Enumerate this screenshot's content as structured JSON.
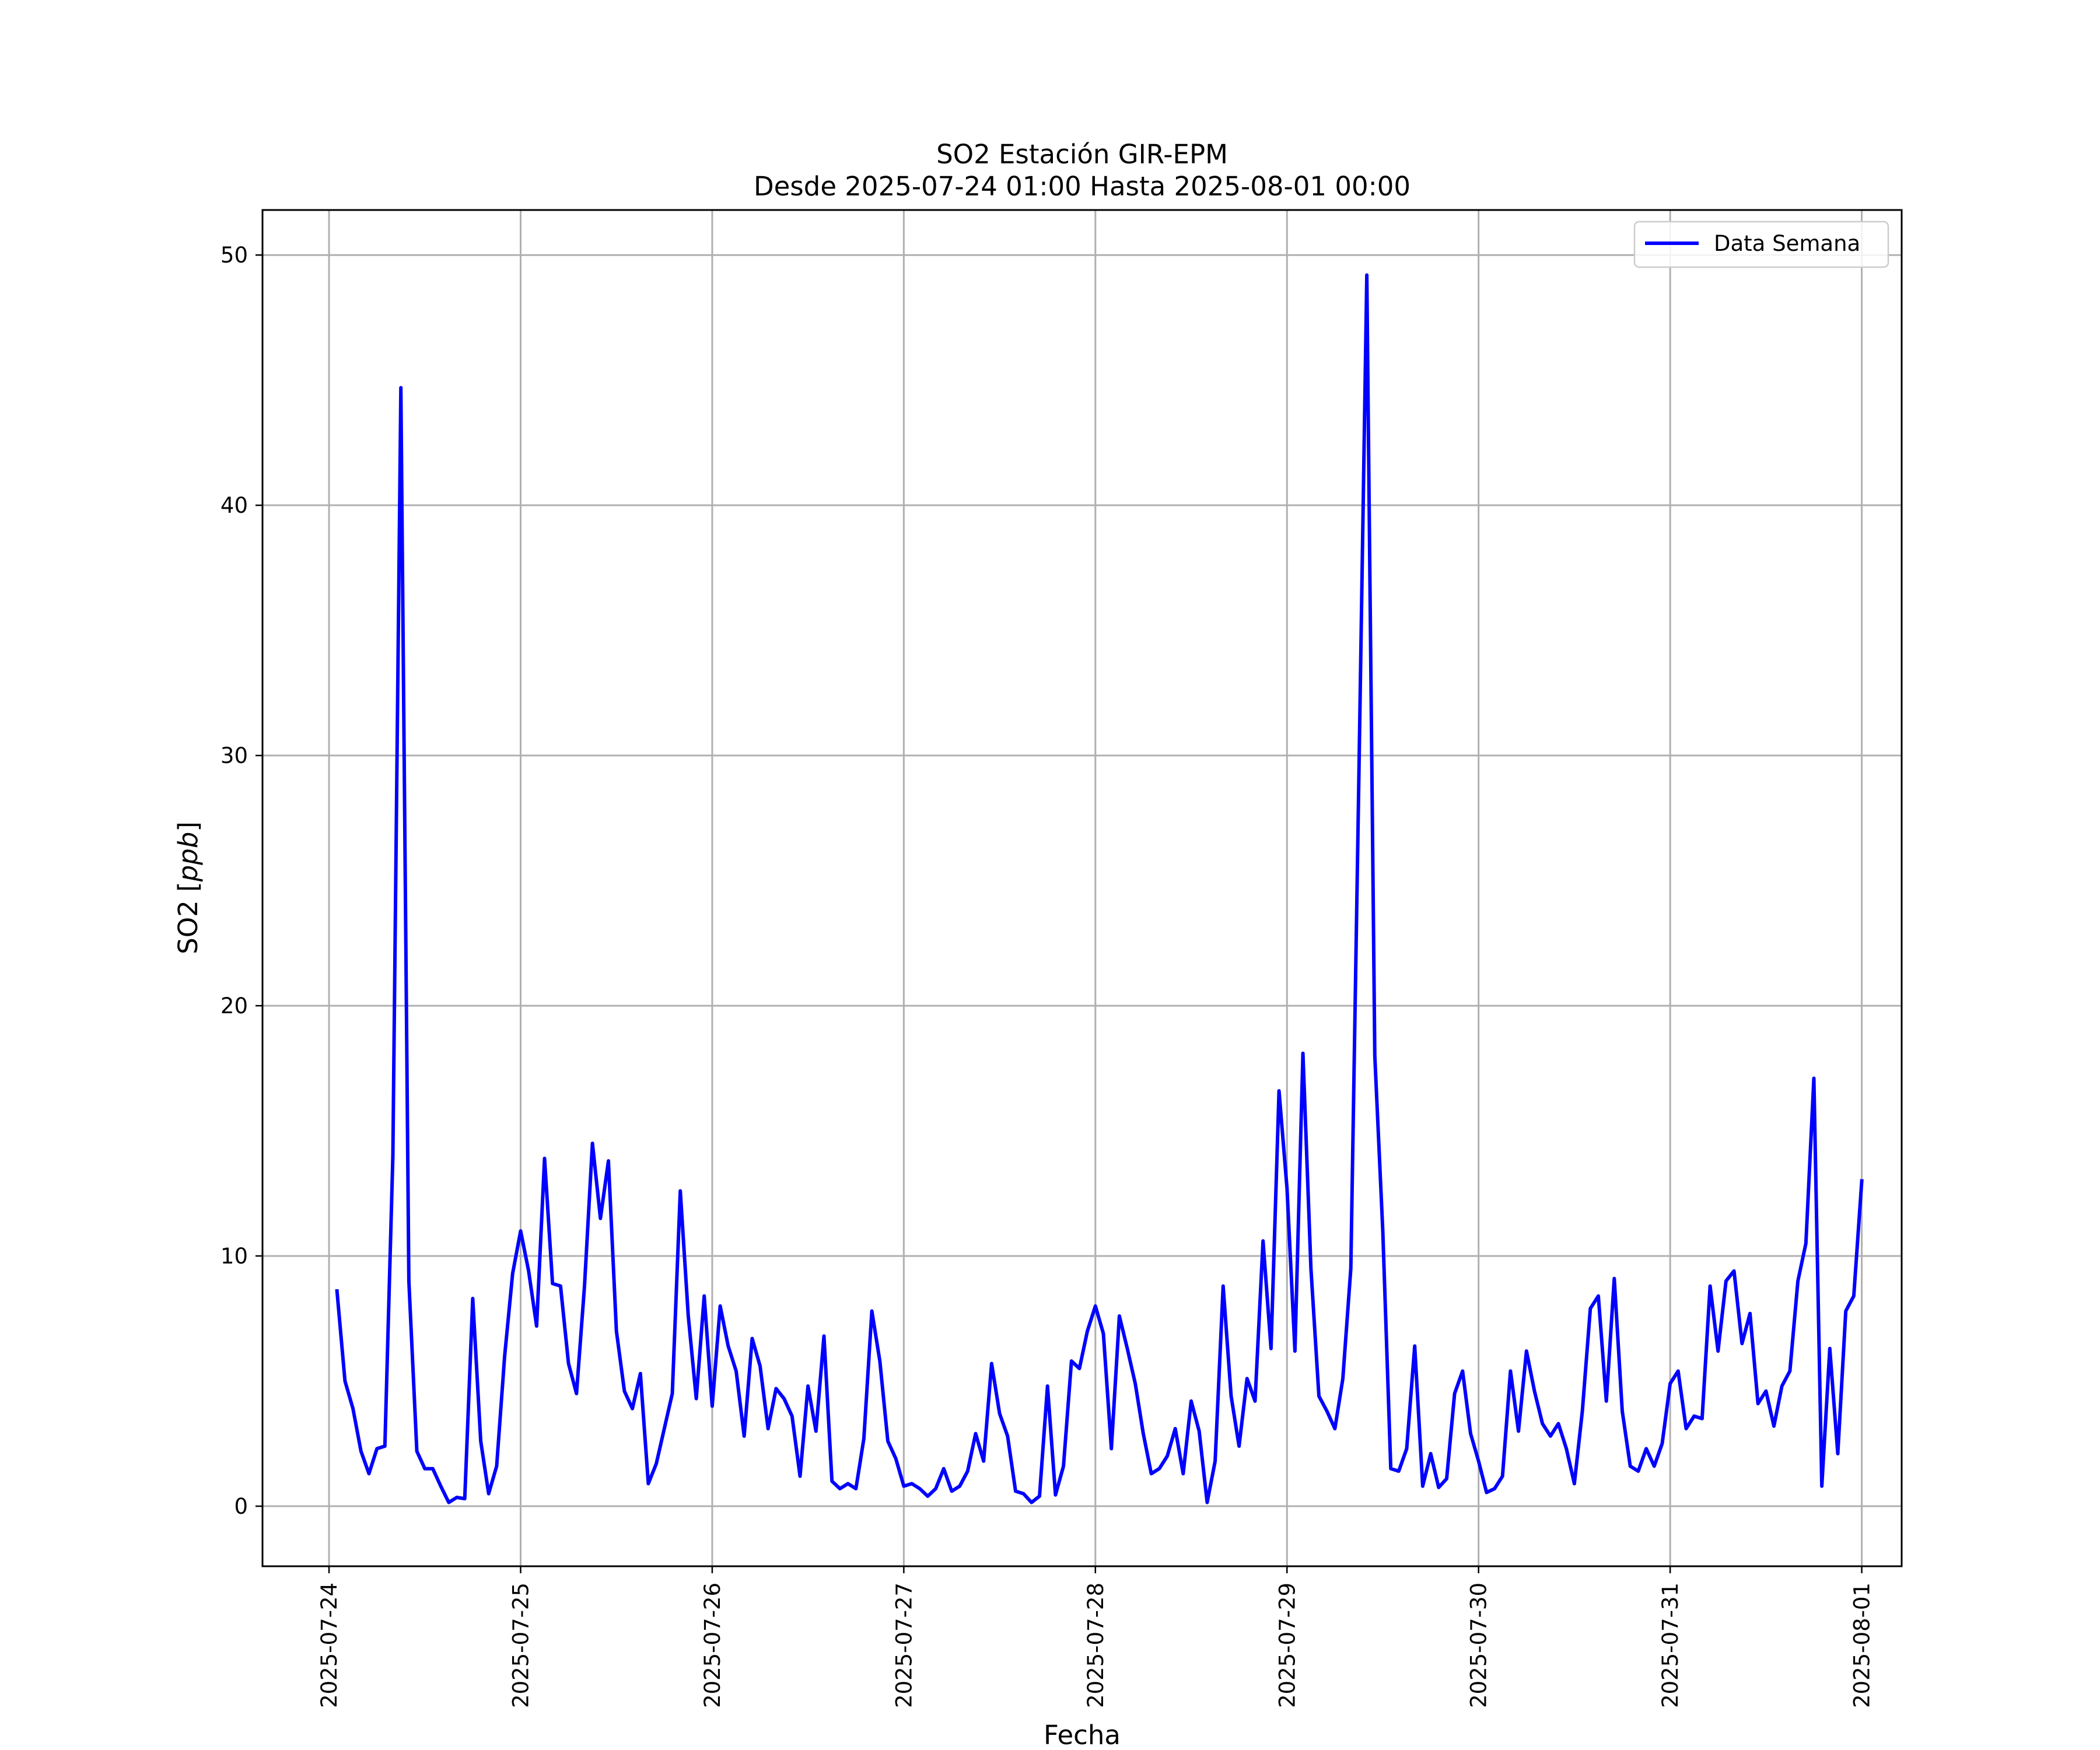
{
  "chart_data": {
    "type": "line",
    "title": "SO2 Estación GIR-EPM",
    "subtitle": "Desde 2025-07-24 01:00 Hasta 2025-08-01 00:00",
    "xlabel": "Fecha",
    "ylabel_prefix": "SO2 [",
    "ylabel_unit": "ppb",
    "ylabel_suffix": "]",
    "x_ticks": [
      "2025-07-24",
      "2025-07-25",
      "2025-07-26",
      "2025-07-27",
      "2025-07-28",
      "2025-07-29",
      "2025-07-30",
      "2025-07-31",
      "2025-08-01"
    ],
    "y_ticks": [
      "0",
      "10",
      "20",
      "30",
      "40",
      "50"
    ],
    "xlim": [
      "2025-07-23 15:40",
      "2025-08-01 05:00"
    ],
    "ylim": [
      -2.4,
      51.8
    ],
    "grid": true,
    "legend_position": "top-right",
    "color": "#0000ff",
    "series": [
      {
        "name": "Data Semana",
        "x": [
          "2025-07-24 01:00",
          "2025-07-24 02:00",
          "2025-07-24 03:00",
          "2025-07-24 04:00",
          "2025-07-24 05:00",
          "2025-07-24 06:00",
          "2025-07-24 07:00",
          "2025-07-24 08:00",
          "2025-07-24 09:00",
          "2025-07-24 10:00",
          "2025-07-24 11:00",
          "2025-07-24 12:00",
          "2025-07-24 13:00",
          "2025-07-24 14:00",
          "2025-07-24 15:00",
          "2025-07-24 16:00",
          "2025-07-24 17:00",
          "2025-07-24 18:00",
          "2025-07-24 19:00",
          "2025-07-24 20:00",
          "2025-07-24 21:00",
          "2025-07-24 22:00",
          "2025-07-24 23:00",
          "2025-07-25 00:00",
          "2025-07-25 01:00",
          "2025-07-25 02:00",
          "2025-07-25 03:00",
          "2025-07-25 04:00",
          "2025-07-25 05:00",
          "2025-07-25 06:00",
          "2025-07-25 07:00",
          "2025-07-25 08:00",
          "2025-07-25 09:00",
          "2025-07-25 10:00",
          "2025-07-25 11:00",
          "2025-07-25 12:00",
          "2025-07-25 13:00",
          "2025-07-25 14:00",
          "2025-07-25 15:00",
          "2025-07-25 16:00",
          "2025-07-25 17:00",
          "2025-07-25 18:00",
          "2025-07-25 19:00",
          "2025-07-25 20:00",
          "2025-07-25 21:00",
          "2025-07-25 22:00",
          "2025-07-25 23:00",
          "2025-07-26 00:00",
          "2025-07-26 01:00",
          "2025-07-26 02:00",
          "2025-07-26 03:00",
          "2025-07-26 04:00",
          "2025-07-26 05:00",
          "2025-07-26 06:00",
          "2025-07-26 07:00",
          "2025-07-26 08:00",
          "2025-07-26 09:00",
          "2025-07-26 10:00",
          "2025-07-26 11:00",
          "2025-07-26 12:00",
          "2025-07-26 13:00",
          "2025-07-26 14:00",
          "2025-07-26 15:00",
          "2025-07-26 16:00",
          "2025-07-26 17:00",
          "2025-07-26 18:00",
          "2025-07-26 19:00",
          "2025-07-26 20:00",
          "2025-07-26 21:00",
          "2025-07-26 22:00",
          "2025-07-26 23:00",
          "2025-07-27 00:00",
          "2025-07-27 01:00",
          "2025-07-27 02:00",
          "2025-07-27 03:00",
          "2025-07-27 04:00",
          "2025-07-27 05:00",
          "2025-07-27 06:00",
          "2025-07-27 07:00",
          "2025-07-27 08:00",
          "2025-07-27 09:00",
          "2025-07-27 10:00",
          "2025-07-27 11:00",
          "2025-07-27 12:00",
          "2025-07-27 13:00",
          "2025-07-27 14:00",
          "2025-07-27 15:00",
          "2025-07-27 16:00",
          "2025-07-27 17:00",
          "2025-07-27 18:00",
          "2025-07-27 19:00",
          "2025-07-27 20:00",
          "2025-07-27 21:00",
          "2025-07-27 22:00",
          "2025-07-27 23:00",
          "2025-07-28 00:00",
          "2025-07-28 01:00",
          "2025-07-28 02:00",
          "2025-07-28 03:00",
          "2025-07-28 04:00",
          "2025-07-28 05:00",
          "2025-07-28 06:00",
          "2025-07-28 07:00",
          "2025-07-28 08:00",
          "2025-07-28 09:00",
          "2025-07-28 10:00",
          "2025-07-28 11:00",
          "2025-07-28 12:00",
          "2025-07-28 13:00",
          "2025-07-28 14:00",
          "2025-07-28 15:00",
          "2025-07-28 16:00",
          "2025-07-28 17:00",
          "2025-07-28 18:00",
          "2025-07-28 19:00",
          "2025-07-28 20:00",
          "2025-07-28 21:00",
          "2025-07-28 22:00",
          "2025-07-28 23:00",
          "2025-07-29 00:00",
          "2025-07-29 01:00",
          "2025-07-29 02:00",
          "2025-07-29 03:00",
          "2025-07-29 04:00",
          "2025-07-29 05:00",
          "2025-07-29 06:00",
          "2025-07-29 07:00",
          "2025-07-29 08:00",
          "2025-07-29 09:00",
          "2025-07-29 10:00",
          "2025-07-29 11:00",
          "2025-07-29 12:00",
          "2025-07-29 13:00",
          "2025-07-29 14:00",
          "2025-07-29 15:00",
          "2025-07-29 16:00",
          "2025-07-29 17:00",
          "2025-07-29 18:00",
          "2025-07-29 19:00",
          "2025-07-29 20:00",
          "2025-07-29 21:00",
          "2025-07-29 22:00",
          "2025-07-29 23:00",
          "2025-07-30 00:00",
          "2025-07-30 01:00",
          "2025-07-30 02:00",
          "2025-07-30 03:00",
          "2025-07-30 04:00",
          "2025-07-30 05:00",
          "2025-07-30 06:00",
          "2025-07-30 07:00",
          "2025-07-30 08:00",
          "2025-07-30 09:00",
          "2025-07-30 10:00",
          "2025-07-30 11:00",
          "2025-07-30 12:00",
          "2025-07-30 13:00",
          "2025-07-30 14:00",
          "2025-07-30 15:00",
          "2025-07-30 16:00",
          "2025-07-30 17:00",
          "2025-07-30 18:00",
          "2025-07-30 19:00",
          "2025-07-30 20:00",
          "2025-07-30 21:00",
          "2025-07-30 22:00",
          "2025-07-30 23:00",
          "2025-07-31 00:00",
          "2025-07-31 01:00",
          "2025-07-31 02:00",
          "2025-07-31 03:00",
          "2025-07-31 04:00",
          "2025-07-31 05:00",
          "2025-07-31 06:00",
          "2025-07-31 07:00",
          "2025-07-31 08:00",
          "2025-07-31 09:00",
          "2025-07-31 10:00",
          "2025-07-31 11:00",
          "2025-07-31 12:00",
          "2025-07-31 13:00",
          "2025-07-31 14:00",
          "2025-07-31 15:00",
          "2025-07-31 16:00",
          "2025-07-31 17:00",
          "2025-07-31 18:00",
          "2025-07-31 19:00",
          "2025-07-31 20:00",
          "2025-07-31 21:00",
          "2025-07-31 22:00",
          "2025-07-31 23:00",
          "2025-08-01 00:00"
        ],
        "values": [
          8.6,
          5.0,
          3.9,
          2.2,
          1.3,
          2.3,
          2.4,
          14.0,
          44.7,
          9.0,
          2.2,
          1.5,
          1.5,
          0.8,
          0.15,
          0.35,
          0.3,
          8.3,
          2.6,
          0.5,
          1.6,
          6.0,
          9.3,
          11.0,
          9.4,
          7.2,
          13.9,
          8.9,
          8.8,
          5.7,
          4.5,
          8.8,
          14.5,
          11.5,
          13.8,
          7.0,
          4.6,
          3.9,
          5.3,
          0.9,
          1.7,
          3.1,
          4.5,
          12.6,
          7.6,
          4.3,
          8.4,
          4.0,
          8.0,
          6.4,
          5.4,
          2.8,
          6.7,
          5.6,
          3.1,
          4.7,
          4.3,
          3.6,
          1.2,
          4.8,
          3.0,
          6.8,
          1.0,
          0.7,
          0.9,
          0.7,
          2.7,
          7.8,
          5.8,
          2.6,
          1.9,
          0.8,
          0.9,
          0.7,
          0.4,
          0.7,
          1.5,
          0.6,
          0.8,
          1.4,
          2.9,
          1.8,
          5.7,
          3.7,
          2.8,
          0.6,
          0.5,
          0.15,
          0.4,
          4.8,
          0.45,
          1.6,
          5.8,
          5.5,
          7.0,
          8.0,
          6.9,
          2.3,
          7.6,
          6.3,
          4.9,
          2.9,
          1.3,
          1.5,
          2.0,
          3.1,
          1.3,
          4.2,
          3.0,
          0.15,
          1.8,
          8.8,
          4.4,
          2.4,
          5.1,
          4.2,
          10.6,
          6.3,
          16.6,
          12.7,
          6.2,
          18.1,
          9.5,
          4.4,
          3.8,
          3.1,
          5.1,
          9.5,
          29.0,
          49.2,
          18.0,
          11.0,
          1.5,
          1.4,
          2.3,
          6.4,
          0.8,
          2.1,
          0.75,
          1.1,
          4.5,
          5.4,
          2.9,
          1.8,
          0.55,
          0.7,
          1.2,
          5.4,
          3.0,
          6.2,
          4.6,
          3.3,
          2.8,
          3.3,
          2.3,
          0.9,
          3.8,
          7.9,
          8.4,
          4.2,
          9.1,
          3.8,
          1.6,
          1.4,
          2.3,
          1.6,
          2.5,
          4.9,
          5.4,
          3.1,
          3.6,
          3.5,
          8.8,
          6.2,
          9.0,
          9.4,
          6.5,
          7.7,
          4.1,
          4.6,
          3.2,
          4.8,
          5.4,
          9.0,
          10.5,
          17.1,
          0.8,
          6.3,
          2.1,
          7.8,
          8.4,
          13.0
        ]
      }
    ]
  }
}
